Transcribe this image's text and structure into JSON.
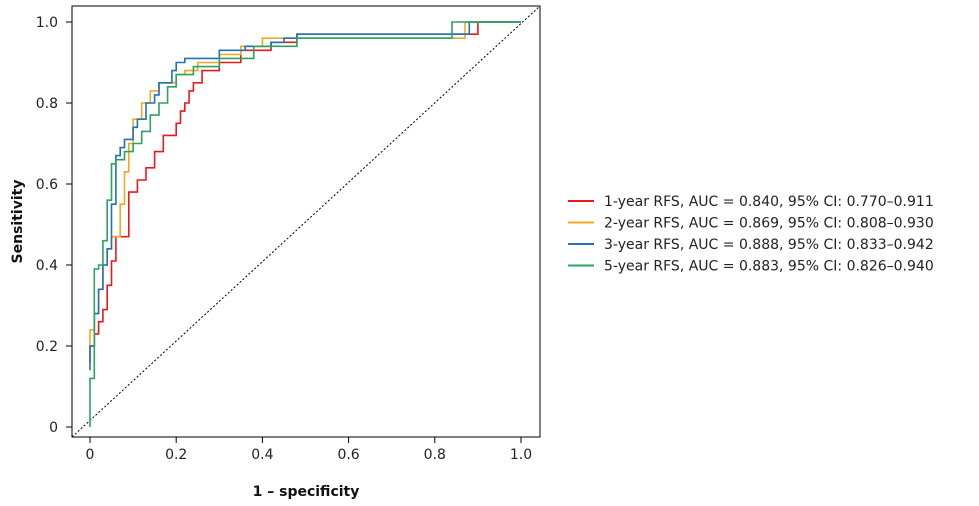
{
  "chart_data": {
    "type": "line",
    "title": "",
    "xlabel": "1 – specificity",
    "ylabel": "Sensitivity",
    "xlim": [
      0,
      1
    ],
    "ylim": [
      0,
      1
    ],
    "x_ticks": [
      "0",
      "0.2",
      "0.4",
      "0.6",
      "0.8",
      "1.0"
    ],
    "y_ticks": [
      "0",
      "0.2",
      "0.4",
      "0.6",
      "0.8",
      "1.0"
    ],
    "grid": false,
    "legend_position": "right",
    "reference_line": {
      "x": [
        0,
        1
      ],
      "y": [
        0,
        1
      ],
      "style": "dotted",
      "color": "#000000"
    },
    "series": [
      {
        "name": "1-year RFS, AUC = 0.840, 95% CI: 0.770–0.911",
        "color": "#e41a1c",
        "x": [
          0,
          0,
          0.01,
          0.01,
          0.02,
          0.02,
          0.03,
          0.03,
          0.04,
          0.04,
          0.05,
          0.05,
          0.06,
          0.06,
          0.07,
          0.07,
          0.09,
          0.09,
          0.11,
          0.11,
          0.13,
          0.13,
          0.15,
          0.15,
          0.17,
          0.17,
          0.2,
          0.2,
          0.21,
          0.21,
          0.22,
          0.22,
          0.23,
          0.23,
          0.24,
          0.24,
          0.26,
          0.26,
          0.3,
          0.3,
          0.35,
          0.35,
          0.42,
          0.42,
          0.48,
          0.48,
          0.88,
          0.88,
          0.9,
          0.9,
          1
        ],
        "y": [
          0.16,
          0.2,
          0.2,
          0.23,
          0.23,
          0.26,
          0.26,
          0.29,
          0.29,
          0.35,
          0.35,
          0.41,
          0.41,
          0.47,
          0.47,
          0.47,
          0.47,
          0.58,
          0.58,
          0.61,
          0.61,
          0.64,
          0.64,
          0.68,
          0.68,
          0.72,
          0.72,
          0.75,
          0.75,
          0.78,
          0.78,
          0.8,
          0.8,
          0.83,
          0.83,
          0.85,
          0.85,
          0.88,
          0.88,
          0.9,
          0.9,
          0.93,
          0.93,
          0.95,
          0.95,
          0.97,
          0.97,
          0.97,
          0.97,
          1,
          1
        ]
      },
      {
        "name": "2-year RFS, AUC = 0.869, 95% CI: 0.808–0.930",
        "color": "#f5a623",
        "x": [
          0,
          0,
          0.01,
          0.01,
          0.02,
          0.02,
          0.03,
          0.03,
          0.04,
          0.04,
          0.05,
          0.05,
          0.06,
          0.06,
          0.07,
          0.07,
          0.08,
          0.08,
          0.09,
          0.09,
          0.1,
          0.1,
          0.12,
          0.12,
          0.14,
          0.14,
          0.16,
          0.16,
          0.2,
          0.2,
          0.22,
          0.22,
          0.25,
          0.25,
          0.3,
          0.3,
          0.35,
          0.35,
          0.4,
          0.4,
          0.48,
          0.48,
          0.87,
          0.87,
          1
        ],
        "y": [
          0.16,
          0.24,
          0.24,
          0.28,
          0.28,
          0.34,
          0.34,
          0.4,
          0.4,
          0.44,
          0.44,
          0.47,
          0.47,
          0.47,
          0.47,
          0.55,
          0.55,
          0.63,
          0.63,
          0.7,
          0.7,
          0.76,
          0.76,
          0.8,
          0.8,
          0.83,
          0.83,
          0.85,
          0.85,
          0.87,
          0.87,
          0.88,
          0.88,
          0.9,
          0.9,
          0.92,
          0.92,
          0.94,
          0.94,
          0.96,
          0.96,
          0.96,
          0.96,
          1,
          1
        ]
      },
      {
        "name": "3-year RFS, AUC = 0.888, 95% CI: 0.833–0.942",
        "color": "#2171b5",
        "x": [
          0,
          0,
          0.01,
          0.01,
          0.02,
          0.02,
          0.03,
          0.03,
          0.04,
          0.04,
          0.05,
          0.05,
          0.06,
          0.06,
          0.07,
          0.07,
          0.08,
          0.08,
          0.1,
          0.1,
          0.11,
          0.11,
          0.13,
          0.13,
          0.15,
          0.15,
          0.16,
          0.16,
          0.19,
          0.19,
          0.2,
          0.2,
          0.22,
          0.22,
          0.3,
          0.3,
          0.36,
          0.36,
          0.42,
          0.42,
          0.45,
          0.45,
          0.48,
          0.48,
          0.88,
          0.88,
          1
        ],
        "y": [
          0.14,
          0.2,
          0.2,
          0.28,
          0.28,
          0.34,
          0.34,
          0.4,
          0.4,
          0.44,
          0.44,
          0.55,
          0.55,
          0.67,
          0.67,
          0.69,
          0.69,
          0.71,
          0.71,
          0.74,
          0.74,
          0.76,
          0.76,
          0.8,
          0.8,
          0.82,
          0.82,
          0.85,
          0.85,
          0.88,
          0.88,
          0.9,
          0.9,
          0.91,
          0.91,
          0.93,
          0.93,
          0.94,
          0.94,
          0.95,
          0.95,
          0.96,
          0.96,
          0.97,
          0.97,
          1,
          1
        ]
      },
      {
        "name": "5-year RFS, AUC = 0.883, 95% CI: 0.826–0.940",
        "color": "#2ca25f",
        "x": [
          0,
          0,
          0.01,
          0.01,
          0.02,
          0.02,
          0.03,
          0.03,
          0.04,
          0.04,
          0.05,
          0.05,
          0.06,
          0.06,
          0.08,
          0.08,
          0.1,
          0.1,
          0.12,
          0.12,
          0.14,
          0.14,
          0.16,
          0.16,
          0.18,
          0.18,
          0.2,
          0.2,
          0.24,
          0.24,
          0.3,
          0.3,
          0.38,
          0.38,
          0.48,
          0.48,
          0.84,
          0.84,
          1
        ],
        "y": [
          0,
          0.12,
          0.12,
          0.39,
          0.39,
          0.4,
          0.4,
          0.46,
          0.46,
          0.56,
          0.56,
          0.65,
          0.65,
          0.66,
          0.66,
          0.68,
          0.68,
          0.7,
          0.7,
          0.73,
          0.73,
          0.77,
          0.77,
          0.8,
          0.8,
          0.84,
          0.84,
          0.87,
          0.87,
          0.89,
          0.89,
          0.91,
          0.91,
          0.94,
          0.94,
          0.96,
          0.96,
          1,
          1
        ]
      }
    ]
  }
}
